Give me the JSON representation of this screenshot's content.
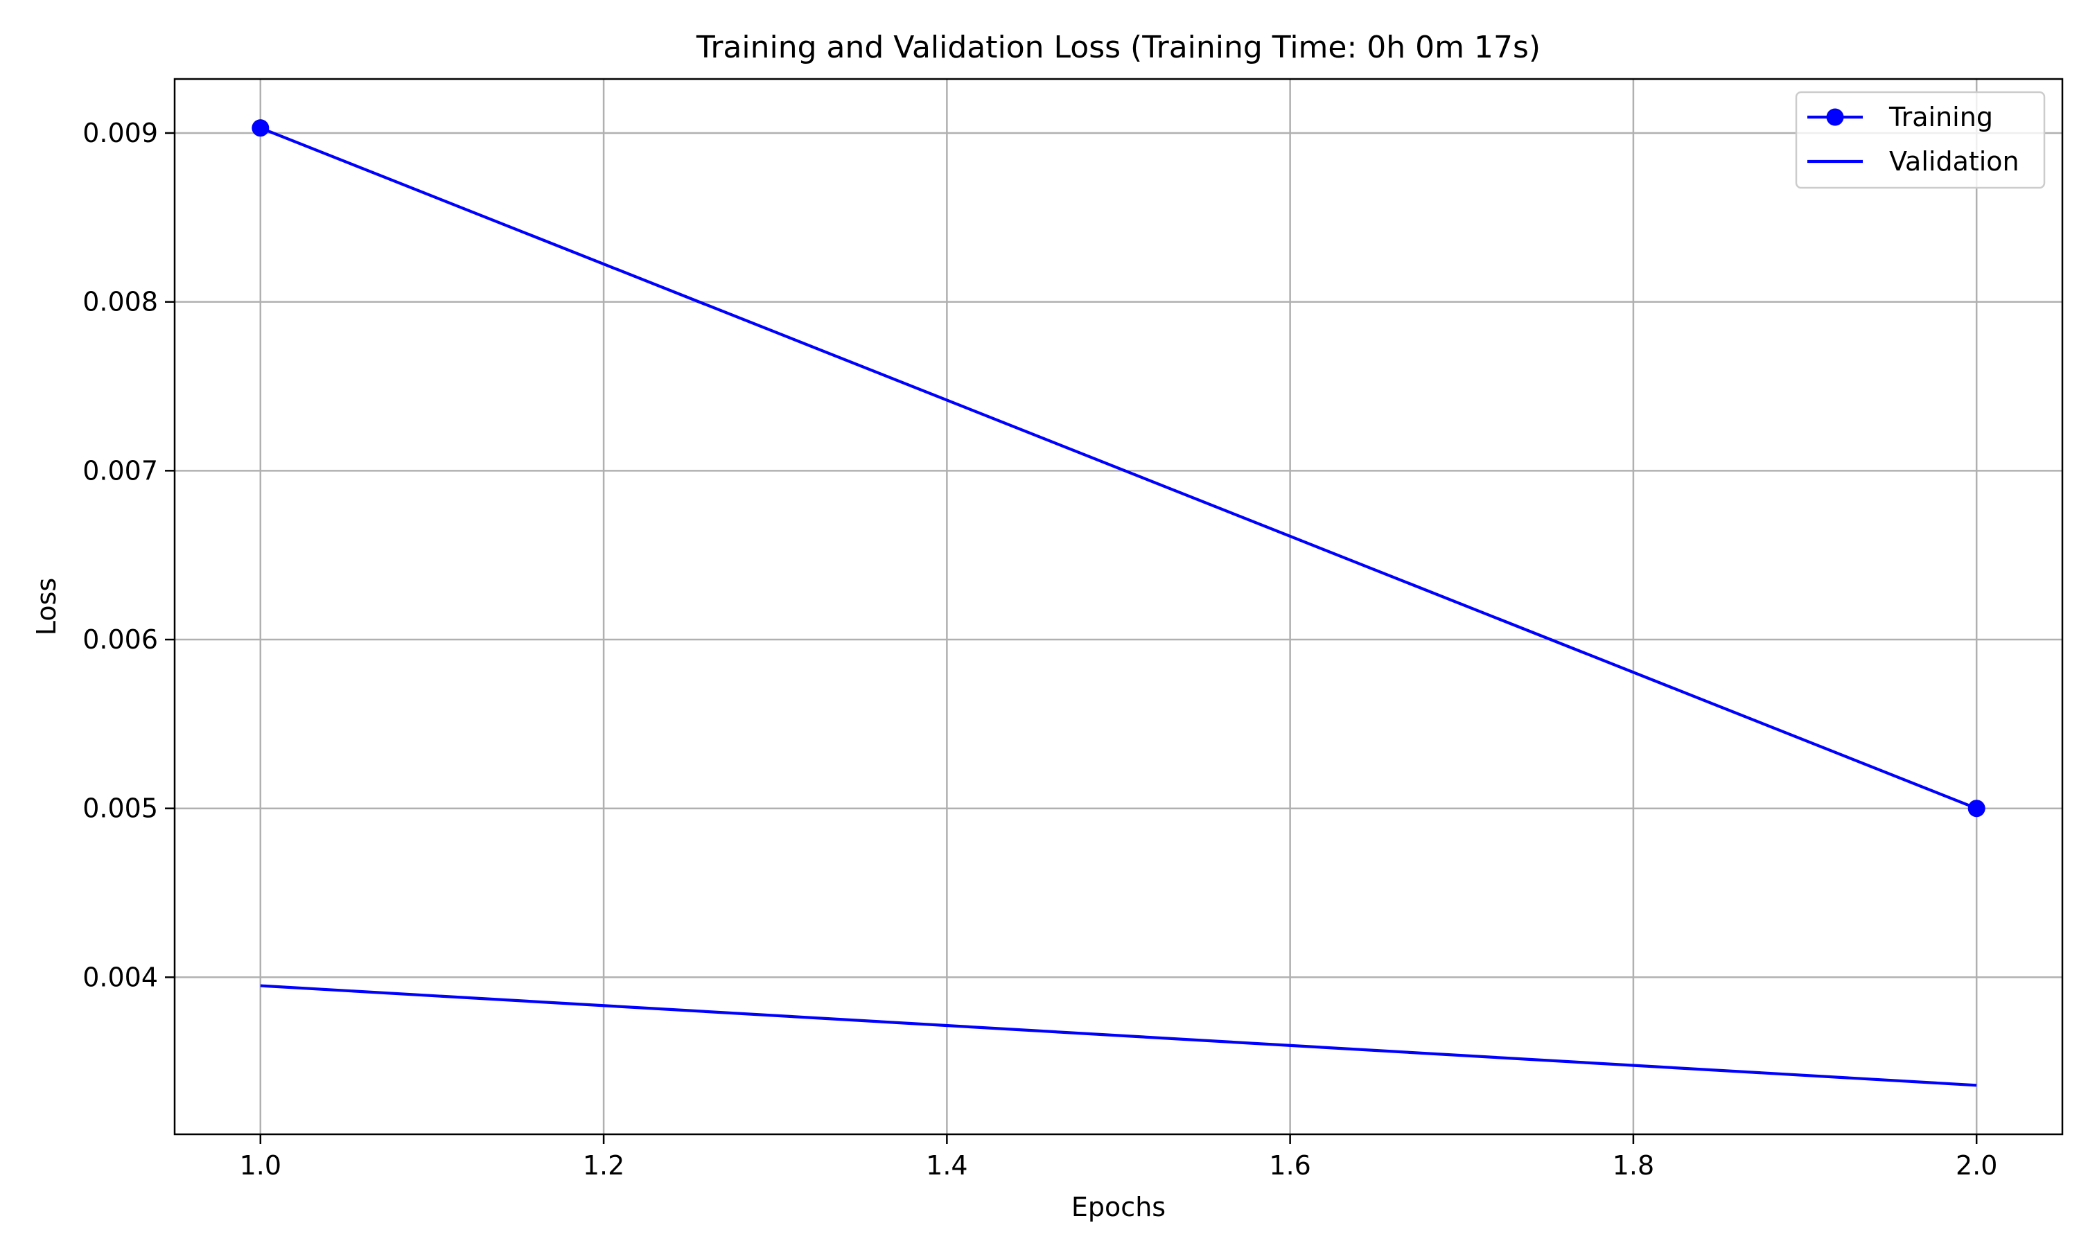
{
  "chart_data": {
    "type": "line",
    "title": "Training and Validation Loss (Training Time: 0h 0m 17s)",
    "xlabel": "Epochs",
    "ylabel": "Loss",
    "xlim": [
      0.95,
      2.05
    ],
    "ylim": [
      0.00307,
      0.00932
    ],
    "x_ticks": [
      1.0,
      1.2,
      1.4,
      1.6,
      1.8,
      2.0
    ],
    "x_tick_labels": [
      "1.0",
      "1.2",
      "1.4",
      "1.6",
      "1.8",
      "2.0"
    ],
    "y_ticks": [
      0.004,
      0.005,
      0.006,
      0.007,
      0.008,
      0.009
    ],
    "y_tick_labels": [
      "0.004",
      "0.005",
      "0.006",
      "0.007",
      "0.008",
      "0.009"
    ],
    "grid": true,
    "legend_position": "upper right",
    "series": [
      {
        "name": "Training",
        "x": [
          1,
          2
        ],
        "values": [
          0.00903,
          0.005
        ],
        "color": "#0000ff",
        "marker": "circle"
      },
      {
        "name": "Validation",
        "x": [
          1,
          2
        ],
        "values": [
          0.00395,
          0.00336
        ],
        "color": "#0000ff",
        "marker": "none"
      }
    ]
  }
}
